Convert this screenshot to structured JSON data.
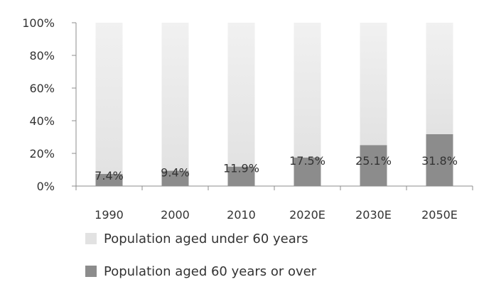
{
  "chart_data": {
    "type": "bar",
    "stacked": true,
    "categories": [
      "1990",
      "2000",
      "2010",
      "2020E",
      "2030E",
      "2050E"
    ],
    "series": [
      {
        "name": "Population aged under 60 years",
        "values": [
          92.6,
          90.6,
          88.1,
          82.5,
          74.9,
          68.2
        ],
        "color": "#e2e2e2"
      },
      {
        "name": "Population aged 60 years or over",
        "values": [
          7.4,
          9.4,
          11.9,
          17.5,
          25.1,
          31.8
        ],
        "color": "#8c8c8c"
      }
    ],
    "data_labels": [
      "7.4%",
      "9.4%",
      "11.9%",
      "17.5%",
      "25.1%",
      "31.8%"
    ],
    "y_ticks": [
      "0%",
      "20%",
      "40%",
      "60%",
      "80%",
      "100%"
    ],
    "ylim": [
      0,
      100
    ],
    "grid": false,
    "legend_position": "bottom-left"
  }
}
